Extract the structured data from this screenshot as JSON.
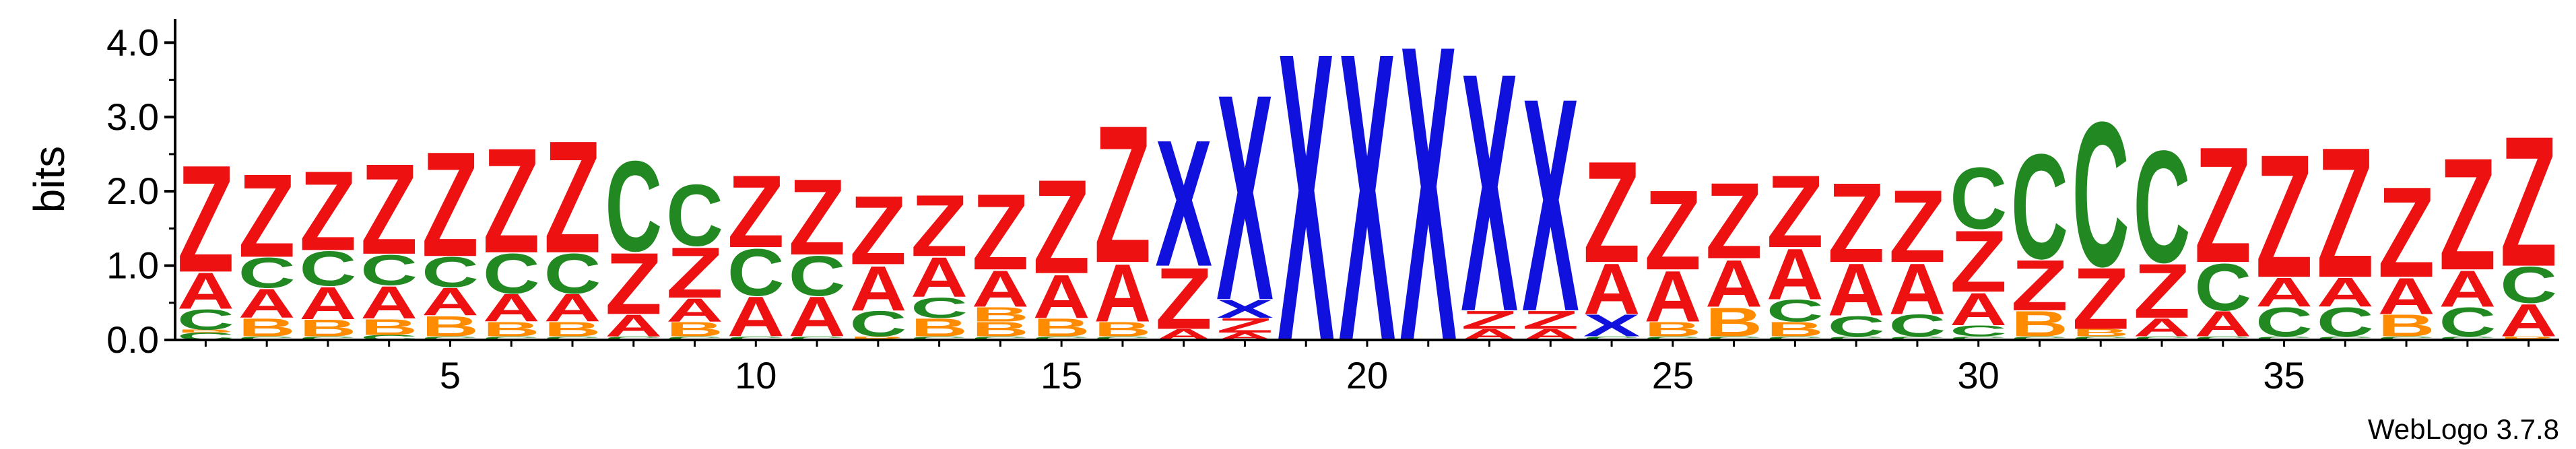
{
  "chart_data": {
    "type": "sequence-logo",
    "ylabel": "bits",
    "ylim": [
      0,
      4.32
    ],
    "yticks": [
      "0.0",
      "1.0",
      "2.0",
      "3.0",
      "4.0"
    ],
    "ytick_values": [
      0,
      1,
      2,
      3,
      4
    ],
    "xticks": [
      "5",
      "10",
      "15",
      "20",
      "25",
      "30",
      "35"
    ],
    "xtick_positions": [
      5,
      10,
      15,
      20,
      25,
      30,
      35
    ],
    "positions": 39,
    "colors": {
      "Z": "#ee1111",
      "A": "#ee1111",
      "C": "#228822",
      "B": "#ff8c00",
      "X": "#1111dd"
    },
    "columns": [
      [
        [
          "C",
          0.1
        ],
        [
          "B",
          0.04
        ],
        [
          "C",
          0.28
        ],
        [
          "A",
          0.5
        ],
        [
          "Z",
          1.48
        ]
      ],
      [
        [
          "C",
          0.05
        ],
        [
          "B",
          0.25
        ],
        [
          "A",
          0.4
        ],
        [
          "C",
          0.42
        ],
        [
          "Z",
          1.15
        ]
      ],
      [
        [
          "C",
          0.05
        ],
        [
          "B",
          0.23
        ],
        [
          "A",
          0.45
        ],
        [
          "C",
          0.48
        ],
        [
          "Z",
          1.1
        ]
      ],
      [
        [
          "C",
          0.07
        ],
        [
          "B",
          0.22
        ],
        [
          "A",
          0.45
        ],
        [
          "C",
          0.42
        ],
        [
          "Z",
          1.25
        ]
      ],
      [
        [
          "C",
          0.05
        ],
        [
          "B",
          0.28
        ],
        [
          "A",
          0.38
        ],
        [
          "C",
          0.42
        ],
        [
          "Z",
          1.45
        ]
      ],
      [
        [
          "C",
          0.05
        ],
        [
          "B",
          0.2
        ],
        [
          "A",
          0.38
        ],
        [
          "C",
          0.55
        ],
        [
          "Z",
          1.45
        ]
      ],
      [
        [
          "C",
          0.05
        ],
        [
          "B",
          0.2
        ],
        [
          "A",
          0.38
        ],
        [
          "C",
          0.55
        ],
        [
          "Z",
          1.55
        ]
      ],
      [
        [
          "C",
          0.05
        ],
        [
          "A",
          0.3
        ],
        [
          "Z",
          0.85
        ],
        [
          "C",
          1.25
        ]
      ],
      [
        [
          "C",
          0.05
        ],
        [
          "B",
          0.2
        ],
        [
          "A",
          0.32
        ],
        [
          "Z",
          0.7
        ],
        [
          "C",
          0.85
        ]
      ],
      [
        [
          "C",
          0.05
        ],
        [
          "A",
          0.55
        ],
        [
          "C",
          0.65
        ],
        [
          "Z",
          1.0
        ]
      ],
      [
        [
          "C",
          0.05
        ],
        [
          "A",
          0.55
        ],
        [
          "C",
          0.55
        ],
        [
          "Z",
          1.05
        ]
      ],
      [
        [
          "B",
          0.05
        ],
        [
          "C",
          0.35
        ],
        [
          "A",
          0.62
        ],
        [
          "Z",
          0.95
        ]
      ],
      [
        [
          "C",
          0.05
        ],
        [
          "B",
          0.25
        ],
        [
          "C",
          0.28
        ],
        [
          "A",
          0.55
        ],
        [
          "Z",
          0.85
        ]
      ],
      [
        [
          "C",
          0.05
        ],
        [
          "B",
          0.2
        ],
        [
          "B",
          0.2
        ],
        [
          "A",
          0.5
        ],
        [
          "Z",
          1.05
        ]
      ],
      [
        [
          "C",
          0.05
        ],
        [
          "B",
          0.25
        ],
        [
          "A",
          0.6
        ],
        [
          "Z",
          1.3
        ]
      ],
      [
        [
          "C",
          0.05
        ],
        [
          "B",
          0.2
        ],
        [
          "A",
          0.8
        ],
        [
          "Z",
          1.9
        ]
      ],
      [
        [
          "A",
          0.15
        ],
        [
          "Z",
          0.85
        ],
        [
          "X",
          1.75
        ]
      ],
      [
        [
          "A",
          0.1
        ],
        [
          "Z",
          0.2
        ],
        [
          "X",
          0.25
        ],
        [
          "X",
          2.85
        ]
      ],
      [
        [
          "X",
          4.0
        ]
      ],
      [
        [
          "X",
          4.0
        ]
      ],
      [
        [
          "X",
          4.1
        ]
      ],
      [
        [
          "A",
          0.15
        ],
        [
          "Z",
          0.25
        ],
        [
          "X",
          3.3
        ]
      ],
      [
        [
          "A",
          0.15
        ],
        [
          "Z",
          0.25
        ],
        [
          "X",
          2.95
        ]
      ],
      [
        [
          "C",
          0.05
        ],
        [
          "X",
          0.3
        ],
        [
          "A",
          0.7
        ],
        [
          "Z",
          1.4
        ]
      ],
      [
        [
          "C",
          0.05
        ],
        [
          "B",
          0.2
        ],
        [
          "A",
          0.7
        ],
        [
          "Z",
          1.1
        ]
      ],
      [
        [
          "C",
          0.05
        ],
        [
          "B",
          0.4
        ],
        [
          "A",
          0.65
        ],
        [
          "Z",
          1.05
        ]
      ],
      [
        [
          "C",
          0.05
        ],
        [
          "B",
          0.2
        ],
        [
          "C",
          0.3
        ],
        [
          "A",
          0.7
        ],
        [
          "Z",
          1.0
        ]
      ],
      [
        [
          "C",
          0.05
        ],
        [
          "C",
          0.28
        ],
        [
          "A",
          0.72
        ],
        [
          "Z",
          1.1
        ]
      ],
      [
        [
          "C",
          0.05
        ],
        [
          "C",
          0.3
        ],
        [
          "A",
          0.7
        ],
        [
          "Z",
          1.0
        ]
      ],
      [
        [
          "C",
          0.05
        ],
        [
          "C",
          0.15
        ],
        [
          "A",
          0.45
        ],
        [
          "Z",
          0.85
        ],
        [
          "C",
          0.85
        ]
      ],
      [
        [
          "C",
          0.05
        ],
        [
          "B",
          0.35
        ],
        [
          "Z",
          0.7
        ],
        [
          "C",
          1.45
        ]
      ],
      [
        [
          "C",
          0.05
        ],
        [
          "B",
          0.1
        ],
        [
          "Z",
          0.85
        ],
        [
          "C",
          2.0
        ]
      ],
      [
        [
          "C",
          0.05
        ],
        [
          "A",
          0.25
        ],
        [
          "Z",
          0.75
        ],
        [
          "C",
          1.55
        ]
      ],
      [
        [
          "C",
          0.05
        ],
        [
          "A",
          0.35
        ],
        [
          "C",
          0.65
        ],
        [
          "Z",
          1.6
        ]
      ],
      [
        [
          "C",
          0.05
        ],
        [
          "C",
          0.4
        ],
        [
          "A",
          0.4
        ],
        [
          "Z",
          1.7
        ]
      ],
      [
        [
          "C",
          0.05
        ],
        [
          "C",
          0.4
        ],
        [
          "A",
          0.4
        ],
        [
          "Z",
          1.8
        ]
      ],
      [
        [
          "C",
          0.05
        ],
        [
          "B",
          0.3
        ],
        [
          "A",
          0.5
        ],
        [
          "Z",
          1.25
        ]
      ],
      [
        [
          "C",
          0.05
        ],
        [
          "C",
          0.4
        ],
        [
          "A",
          0.5
        ],
        [
          "Z",
          1.55
        ]
      ],
      [
        [
          "B",
          0.05
        ],
        [
          "A",
          0.45
        ],
        [
          "C",
          0.5
        ],
        [
          "Z",
          1.8
        ]
      ]
    ]
  },
  "credit": "WebLogo 3.7.8"
}
